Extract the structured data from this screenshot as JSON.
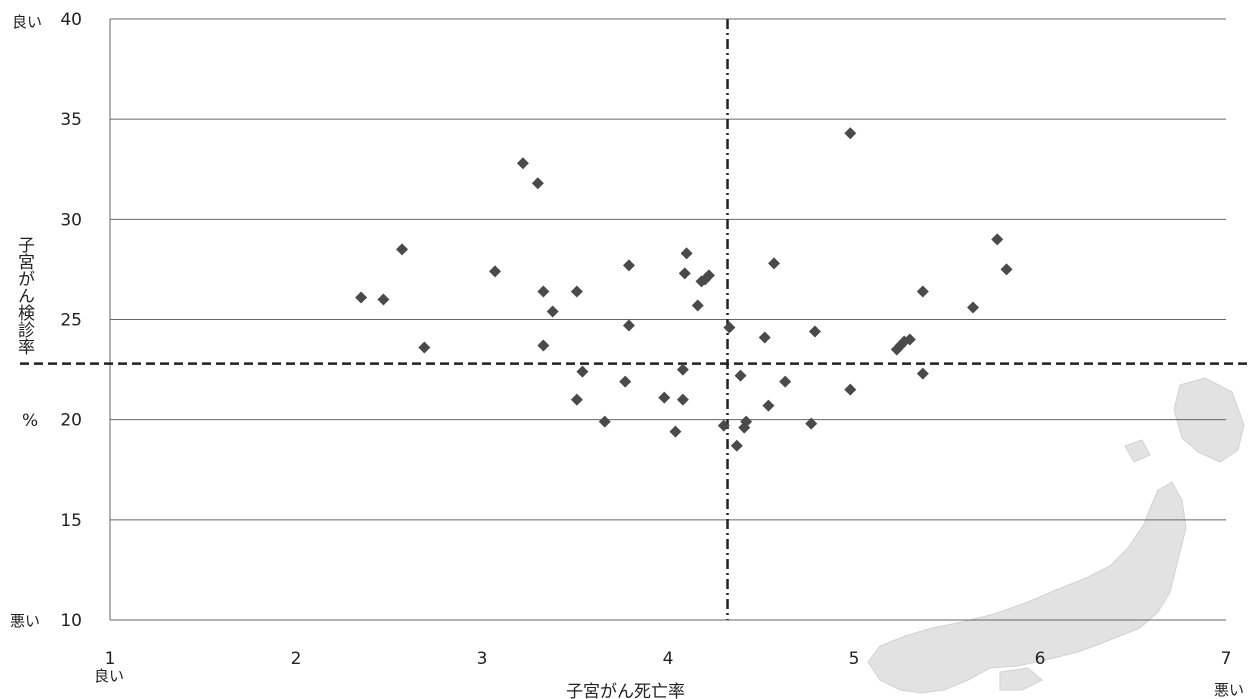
{
  "chart_data": {
    "type": "scatter",
    "title": "",
    "xlabel": "子宮がん死亡率",
    "ylabel": "子宮がん検診率",
    "yunit": "%",
    "xlim": [
      1,
      7
    ],
    "ylim": [
      10,
      40
    ],
    "xticks": [
      1,
      2,
      3,
      4,
      5,
      6,
      7
    ],
    "yticks": [
      10,
      15,
      20,
      25,
      30,
      35,
      40
    ],
    "grid": "horizontal",
    "axis_qualifiers": {
      "y_top": "良い",
      "y_bottom": "悪い",
      "x_left": "良い",
      "x_right": "悪い"
    },
    "reference_lines": {
      "vertical_x": 4.32,
      "horizontal_y": 22.8
    },
    "points": [
      {
        "x": 2.35,
        "y": 26.1
      },
      {
        "x": 2.47,
        "y": 26.0
      },
      {
        "x": 2.57,
        "y": 28.5
      },
      {
        "x": 2.69,
        "y": 23.6
      },
      {
        "x": 3.07,
        "y": 27.4
      },
      {
        "x": 3.22,
        "y": 32.8
      },
      {
        "x": 3.3,
        "y": 31.8
      },
      {
        "x": 3.33,
        "y": 26.4
      },
      {
        "x": 3.33,
        "y": 23.7
      },
      {
        "x": 3.38,
        "y": 25.4
      },
      {
        "x": 3.51,
        "y": 26.4
      },
      {
        "x": 3.54,
        "y": 22.4
      },
      {
        "x": 3.51,
        "y": 21.0
      },
      {
        "x": 3.66,
        "y": 19.9
      },
      {
        "x": 3.77,
        "y": 21.9
      },
      {
        "x": 3.79,
        "y": 24.7
      },
      {
        "x": 3.79,
        "y": 27.7
      },
      {
        "x": 3.98,
        "y": 21.1
      },
      {
        "x": 4.04,
        "y": 19.4
      },
      {
        "x": 4.08,
        "y": 22.5
      },
      {
        "x": 4.08,
        "y": 21.0
      },
      {
        "x": 4.09,
        "y": 27.3
      },
      {
        "x": 4.1,
        "y": 28.3
      },
      {
        "x": 4.16,
        "y": 25.7
      },
      {
        "x": 4.18,
        "y": 26.9
      },
      {
        "x": 4.2,
        "y": 27.0
      },
      {
        "x": 4.22,
        "y": 27.2
      },
      {
        "x": 4.3,
        "y": 19.7
      },
      {
        "x": 4.33,
        "y": 24.6
      },
      {
        "x": 4.37,
        "y": 18.7
      },
      {
        "x": 4.39,
        "y": 22.2
      },
      {
        "x": 4.41,
        "y": 19.6
      },
      {
        "x": 4.42,
        "y": 19.9
      },
      {
        "x": 4.52,
        "y": 24.1
      },
      {
        "x": 4.54,
        "y": 20.7
      },
      {
        "x": 4.57,
        "y": 27.8
      },
      {
        "x": 4.63,
        "y": 21.9
      },
      {
        "x": 4.77,
        "y": 19.8
      },
      {
        "x": 4.79,
        "y": 24.4
      },
      {
        "x": 4.98,
        "y": 21.5
      },
      {
        "x": 4.98,
        "y": 34.3
      },
      {
        "x": 5.23,
        "y": 23.5
      },
      {
        "x": 5.25,
        "y": 23.7
      },
      {
        "x": 5.27,
        "y": 23.9
      },
      {
        "x": 5.3,
        "y": 24.0
      },
      {
        "x": 5.37,
        "y": 26.4
      },
      {
        "x": 5.37,
        "y": 22.3
      },
      {
        "x": 5.64,
        "y": 25.6
      },
      {
        "x": 5.77,
        "y": 29.0
      },
      {
        "x": 5.82,
        "y": 27.5
      }
    ]
  }
}
